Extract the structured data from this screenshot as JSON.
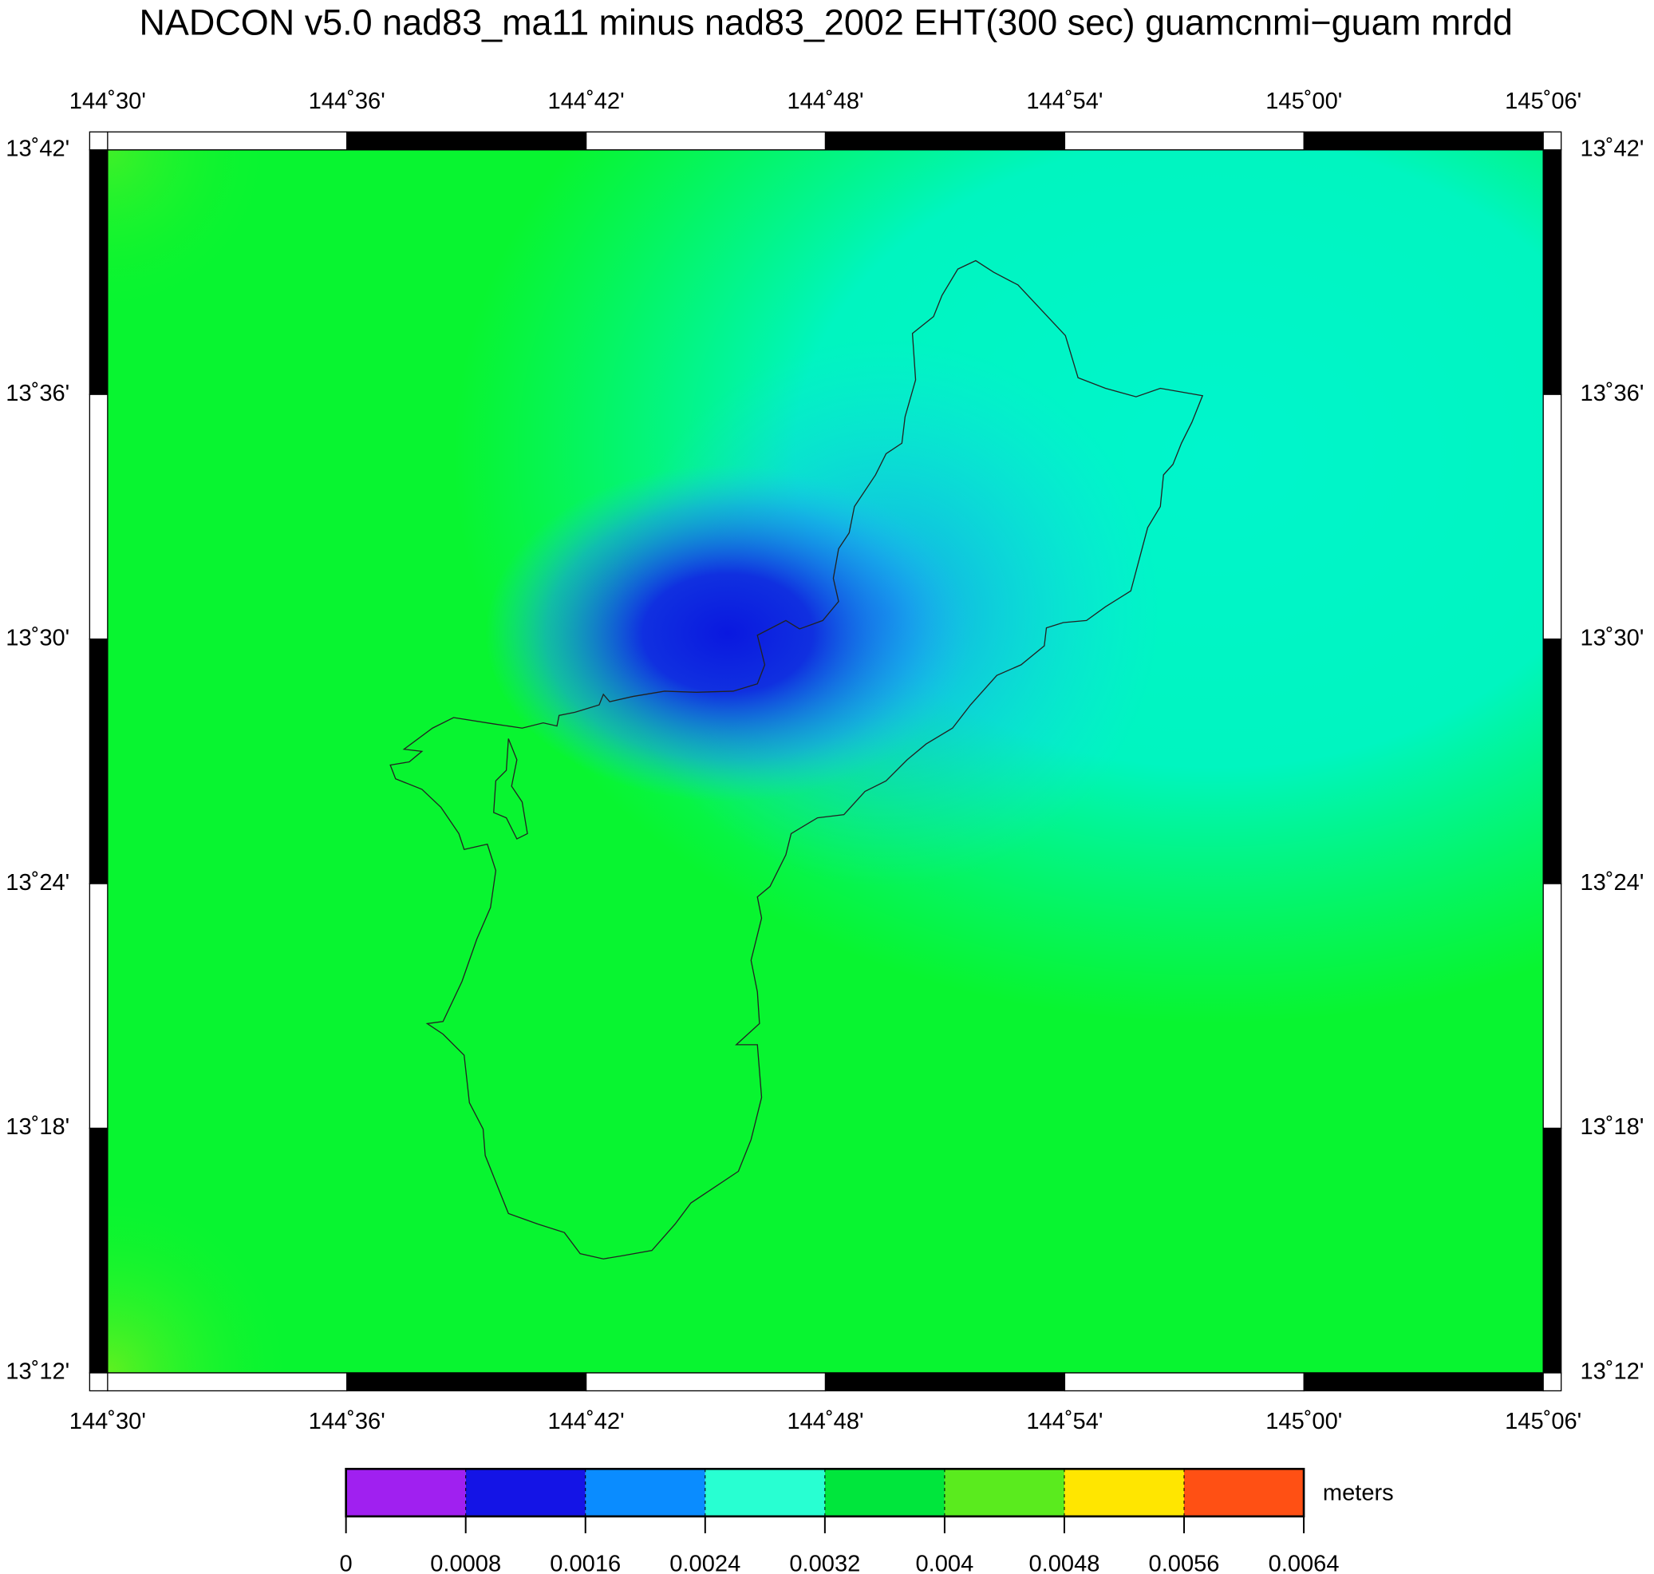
{
  "title": "NADCON v5.0 nad83_ma11 minus nad83_2002 EHT(300 sec) guamcnmi−guam mrdd",
  "map": {
    "lon_labels": [
      "144˚30'",
      "144˚36'",
      "144˚42'",
      "144˚48'",
      "144˚54'",
      "145˚00'",
      "145˚06'"
    ],
    "lat_labels": [
      "13˚42'",
      "13˚36'",
      "13˚30'",
      "13˚24'",
      "13˚18'",
      "13˚12'"
    ]
  },
  "colorbar": {
    "ticks": [
      0,
      0.0008,
      0.0016,
      0.0024,
      0.0032,
      0.004,
      0.0048,
      0.0056,
      0.0064
    ],
    "colors": [
      "#a020f0",
      "#1414e6",
      "#0a8cff",
      "#28ffd2",
      "#00e63c",
      "#5aeb1e",
      "#ffe600",
      "#ff5014"
    ],
    "unit": "meters"
  }
}
